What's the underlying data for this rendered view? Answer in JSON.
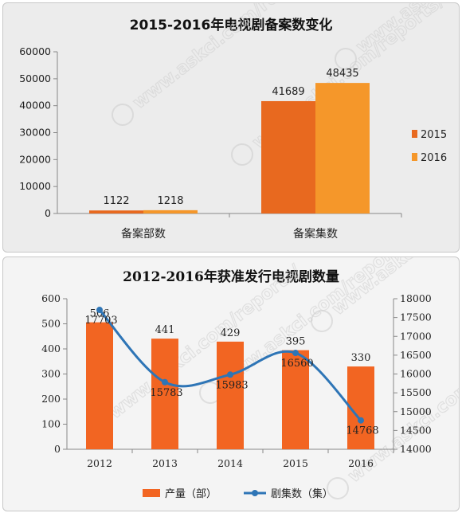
{
  "chart_data": [
    {
      "type": "bar",
      "title": "2015-2016年电视剧备案数变化",
      "categories": [
        "备案部数",
        "备案集数"
      ],
      "series": [
        {
          "name": "2015",
          "values": [
            1122,
            41689
          ],
          "color": "#e8691f"
        },
        {
          "name": "2016",
          "values": [
            1218,
            48435
          ],
          "color": "#f5972a"
        }
      ],
      "ylim": [
        0,
        60000
      ],
      "yticks": [
        0,
        10000,
        20000,
        30000,
        40000,
        50000,
        60000
      ],
      "legend_position": "right",
      "grid": false
    },
    {
      "type": "bar+line",
      "title": "2012-2016年获准发行电视剧数量",
      "categories": [
        "2012",
        "2013",
        "2014",
        "2015",
        "2016"
      ],
      "bar_series": {
        "name": "产量（部）",
        "values": [
          506,
          441,
          429,
          395,
          330
        ],
        "color": "#f26522"
      },
      "line_series": {
        "name": "剧集数（集）",
        "values": [
          17703,
          15783,
          15983,
          16560,
          14768
        ],
        "color": "#2e75b6"
      },
      "ylim_left": [
        0,
        600
      ],
      "yticks_left": [
        0,
        100,
        200,
        300,
        400,
        500,
        600
      ],
      "ylim_right": [
        14000,
        18000
      ],
      "yticks_right": [
        14000,
        14500,
        15000,
        15500,
        16000,
        16500,
        17000,
        17500,
        18000
      ],
      "legend_position": "bottom",
      "grid": false
    }
  ],
  "watermark": "www.askci.com/reports/"
}
